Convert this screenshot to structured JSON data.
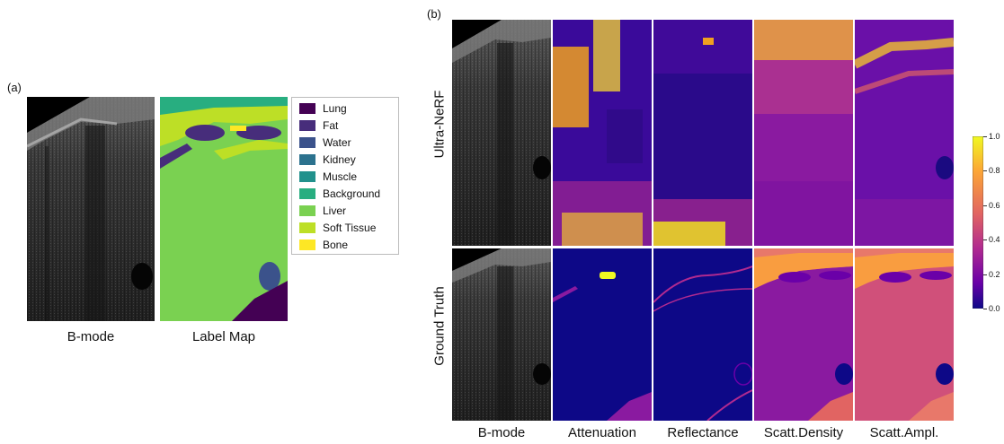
{
  "panel_a": {
    "label": "(a)",
    "bmode_caption": "B-mode",
    "labelmap_caption": "Label Map",
    "legend": [
      {
        "label": "Lung",
        "color": "#440154"
      },
      {
        "label": "Fat",
        "color": "#472d7b"
      },
      {
        "label": "Water",
        "color": "#3b528b"
      },
      {
        "label": "Kidney",
        "color": "#2c728e"
      },
      {
        "label": "Muscle",
        "color": "#21918c"
      },
      {
        "label": "Background",
        "color": "#28ae80"
      },
      {
        "label": "Liver",
        "color": "#7ad151"
      },
      {
        "label": "Soft Tissue",
        "color": "#bddf26"
      },
      {
        "label": "Bone",
        "color": "#fde725"
      }
    ]
  },
  "panel_b": {
    "label": "(b)",
    "row_labels": [
      "Ultra-NeRF",
      "Ground Truth"
    ],
    "column_captions": [
      "B-mode",
      "Attenuation",
      "Reflectance",
      "Scatt.Density",
      "Scatt.Ampl."
    ],
    "colorbar": {
      "ticks": [
        "1.0",
        "0.8",
        "0.6",
        "0.4",
        "0.2",
        "0.0"
      ],
      "colors": [
        "#fcfdbf",
        "#f0f921",
        "#fca636",
        "#e16462",
        "#b12a90",
        "#6a00a8",
        "#0d0887"
      ]
    }
  }
}
